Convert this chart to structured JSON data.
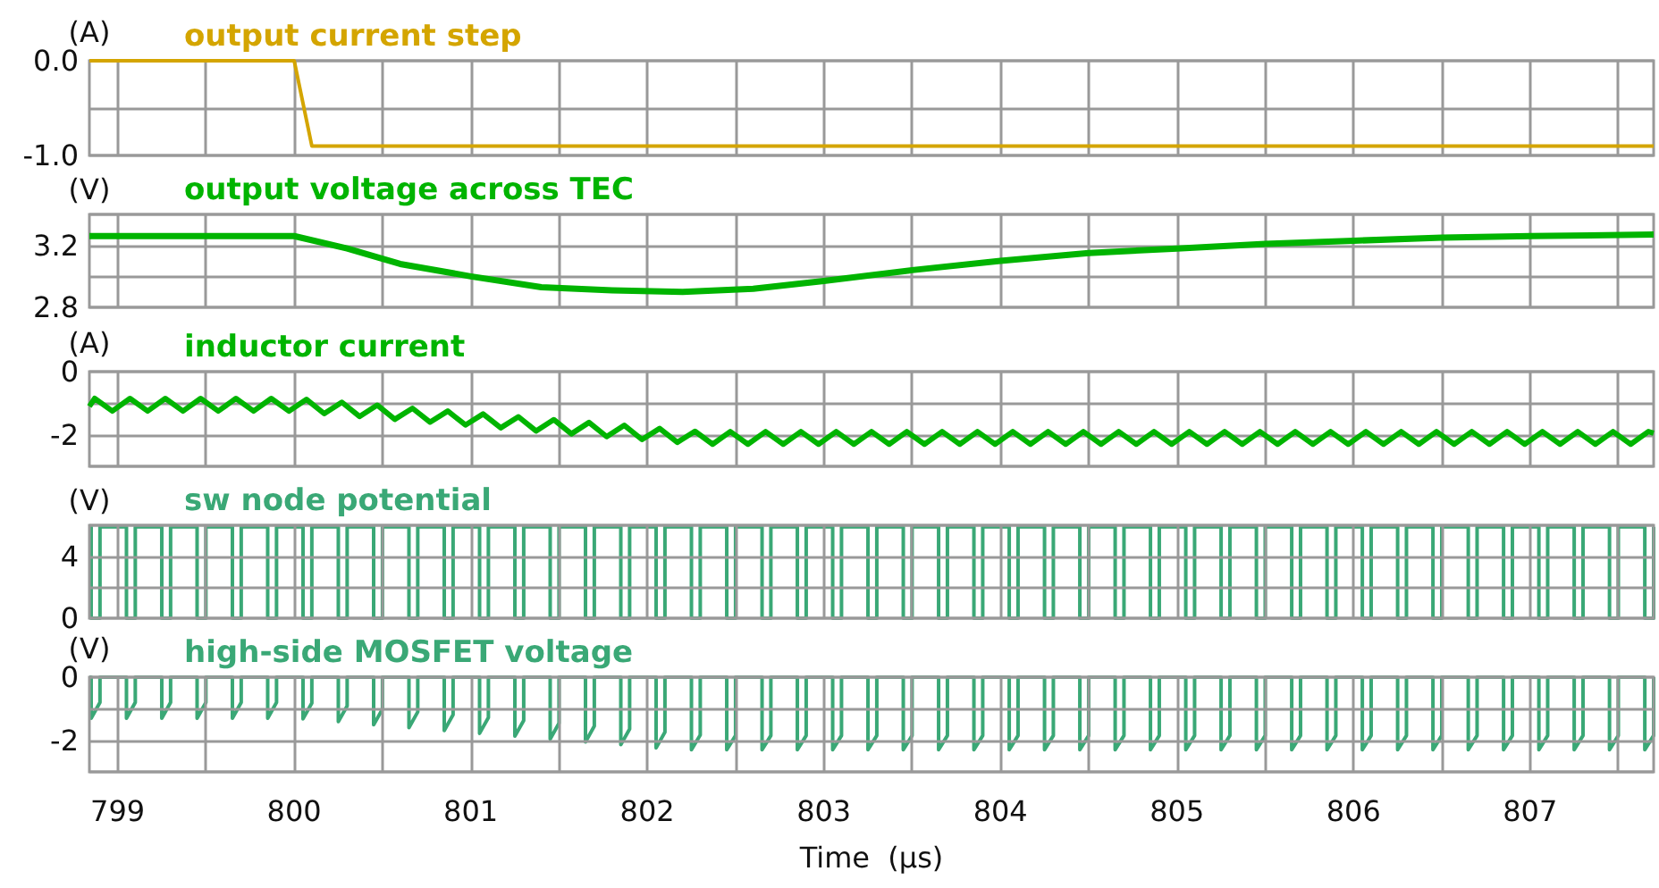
{
  "chart_data": [
    {
      "type": "line",
      "title": "output current step",
      "ylabel": "(A)",
      "tick_labels": "y",
      "grid": true,
      "xlim": [
        798.84,
        807.7
      ],
      "xticks": [
        799,
        {
          "value": 799.5,
          "label": null
        },
        800,
        {
          "value": 800.5,
          "label": null
        },
        801,
        {
          "value": 801.5,
          "label": null
        },
        802,
        {
          "value": 802.5,
          "label": null
        },
        803,
        {
          "value": 803.5,
          "label": null
        },
        804,
        {
          "value": 804.5,
          "label": null
        },
        805,
        {
          "value": 805.5,
          "label": null
        },
        806,
        {
          "value": 806.5,
          "label": null
        },
        807,
        {
          "value": 807.5,
          "label": null
        }
      ],
      "ylim": [
        -1,
        0
      ],
      "yticks": [
        {
          "value": -1,
          "label": "-1.0"
        },
        {
          "value": -0.5,
          "label": null
        },
        {
          "value": 0,
          "label": "0.0"
        }
      ],
      "series": [
        {
          "color": "#d4a500",
          "x": [
            798.84,
            800.0,
            800.1,
            807.7
          ],
          "values": [
            0,
            0,
            -0.9,
            -0.9
          ]
        }
      ]
    },
    {
      "type": "line",
      "title": "output voltage across TEC",
      "ylabel": "(V)",
      "tick_labels": "y",
      "grid": true,
      "xlim": [
        798.84,
        807.7
      ],
      "xticks": [
        799,
        {
          "value": 799.5,
          "label": null
        },
        800,
        {
          "value": 800.5,
          "label": null
        },
        801,
        {
          "value": 801.5,
          "label": null
        },
        802,
        {
          "value": 802.5,
          "label": null
        },
        803,
        {
          "value": 803.5,
          "label": null
        },
        804,
        {
          "value": 804.5,
          "label": null
        },
        805,
        {
          "value": 805.5,
          "label": null
        },
        806,
        {
          "value": 806.5,
          "label": null
        },
        807,
        {
          "value": 807.5,
          "label": null
        }
      ],
      "ylim": [
        2.8,
        3.4
      ],
      "yticks": [
        2.8,
        {
          "value": 3.0,
          "label": null
        },
        3.2,
        {
          "value": 3.4,
          "label": null
        }
      ],
      "series": [
        {
          "color": "#00b400",
          "x": [
            798.84,
            800.0,
            800.3,
            800.6,
            801.0,
            801.4,
            801.8,
            802.2,
            802.6,
            803.0,
            803.5,
            804.0,
            804.5,
            805.0,
            805.5,
            806.0,
            806.5,
            807.0,
            807.7
          ],
          "values": [
            3.26,
            3.26,
            3.18,
            3.08,
            3.0,
            2.93,
            2.91,
            2.9,
            2.92,
            2.97,
            3.04,
            3.1,
            3.15,
            3.18,
            3.21,
            3.23,
            3.25,
            3.26,
            3.27
          ]
        }
      ]
    },
    {
      "type": "line",
      "title": "inductor current",
      "ylabel": "(A)",
      "tick_labels": "y",
      "grid": true,
      "xlim": [
        798.84,
        807.7
      ],
      "xticks": [
        799,
        {
          "value": 799.5,
          "label": null
        },
        800,
        {
          "value": 800.5,
          "label": null
        },
        801,
        {
          "value": 801.5,
          "label": null
        },
        802,
        {
          "value": 802.5,
          "label": null
        },
        803,
        {
          "value": 803.5,
          "label": null
        },
        804,
        {
          "value": 804.5,
          "label": null
        },
        805,
        {
          "value": 805.5,
          "label": null
        },
        806,
        {
          "value": 806.5,
          "label": null
        },
        807,
        {
          "value": 807.5,
          "label": null
        }
      ],
      "ylim": [
        -3,
        0
      ],
      "yticks": [
        {
          "value": -3,
          "label": null
        },
        -2,
        {
          "value": -1,
          "label": null
        },
        0
      ],
      "series": [
        {
          "color": "#00b400",
          "x": [
            798.84,
            798.87,
            798.97,
            799.07,
            799.17,
            799.27,
            799.37,
            799.47,
            799.57,
            799.67,
            799.77,
            799.87,
            799.97,
            800.07,
            800.17,
            800.27,
            800.37,
            800.47,
            800.57,
            800.67,
            800.77,
            800.87,
            800.97,
            801.07,
            801.17,
            801.27,
            801.37,
            801.47,
            801.57,
            801.67,
            801.77,
            801.87,
            801.97,
            802.07,
            802.17,
            802.27,
            802.37,
            802.47,
            802.57,
            802.67,
            802.77,
            802.87,
            802.97,
            803.07,
            803.17,
            803.27,
            803.37,
            803.47,
            803.57,
            803.67,
            803.77,
            803.87,
            803.97,
            804.07,
            804.17,
            804.27,
            804.37,
            804.47,
            804.57,
            804.67,
            804.77,
            804.87,
            804.97,
            805.07,
            805.17,
            805.27,
            805.37,
            805.47,
            805.57,
            805.67,
            805.77,
            805.87,
            805.97,
            806.07,
            806.17,
            806.27,
            806.37,
            806.47,
            806.57,
            806.67,
            806.77,
            806.87,
            806.97,
            807.07,
            807.17,
            807.27,
            807.37,
            807.47,
            807.57,
            807.67,
            807.7
          ],
          "values": [
            -1.1,
            -0.85,
            -1.25,
            -0.85,
            -1.25,
            -0.85,
            -1.25,
            -0.85,
            -1.25,
            -0.85,
            -1.25,
            -0.85,
            -1.25,
            -0.88,
            -1.33,
            -0.97,
            -1.42,
            -1.06,
            -1.51,
            -1.16,
            -1.6,
            -1.25,
            -1.69,
            -1.34,
            -1.78,
            -1.43,
            -1.88,
            -1.52,
            -1.97,
            -1.61,
            -2.06,
            -1.7,
            -2.15,
            -1.8,
            -2.24,
            -1.89,
            -2.3,
            -1.9,
            -2.3,
            -1.9,
            -2.3,
            -1.9,
            -2.3,
            -1.9,
            -2.3,
            -1.9,
            -2.3,
            -1.9,
            -2.3,
            -1.9,
            -2.3,
            -1.9,
            -2.3,
            -1.9,
            -2.3,
            -1.9,
            -2.3,
            -1.9,
            -2.3,
            -1.9,
            -2.3,
            -1.9,
            -2.3,
            -1.9,
            -2.3,
            -1.9,
            -2.3,
            -1.9,
            -2.3,
            -1.9,
            -2.3,
            -1.9,
            -2.3,
            -1.9,
            -2.3,
            -1.9,
            -2.3,
            -1.9,
            -2.3,
            -1.9,
            -2.3,
            -1.9,
            -2.3,
            -1.9,
            -2.3,
            -1.9,
            -2.3,
            -1.9,
            -2.3,
            -1.9,
            -1.95
          ]
        }
      ]
    },
    {
      "type": "line",
      "title": "sw node potential",
      "ylabel": "(V)",
      "tick_labels": "y",
      "grid": true,
      "xlim": [
        798.84,
        807.7
      ],
      "xticks": [
        799,
        {
          "value": 799.5,
          "label": null
        },
        800,
        {
          "value": 800.5,
          "label": null
        },
        801,
        {
          "value": 801.5,
          "label": null
        },
        802,
        {
          "value": 802.5,
          "label": null
        },
        803,
        {
          "value": 803.5,
          "label": null
        },
        804,
        {
          "value": 804.5,
          "label": null
        },
        805,
        {
          "value": 805.5,
          "label": null
        },
        806,
        {
          "value": 806.5,
          "label": null
        },
        807,
        {
          "value": 807.5,
          "label": null
        }
      ],
      "ylim": [
        0,
        6
      ],
      "yticks": [
        0,
        {
          "value": 2,
          "label": null
        },
        4,
        {
          "value": 6,
          "label": null
        }
      ],
      "x": [
        798.84,
        798.85,
        798.85,
        798.9,
        798.9,
        799.05,
        799.05,
        799.1,
        799.1,
        799.25,
        799.25,
        799.3,
        799.3,
        799.45,
        799.45,
        799.5,
        799.5,
        799.65,
        799.65,
        799.7,
        799.7,
        799.85,
        799.85,
        799.9,
        799.9,
        800.05,
        800.05,
        800.1,
        800.1,
        800.25,
        800.25,
        800.3,
        800.3,
        800.45,
        800.45,
        800.5,
        800.5,
        800.65,
        800.65,
        800.7,
        800.7,
        800.85,
        800.85,
        800.9,
        800.9,
        801.05,
        801.05,
        801.1,
        801.1,
        801.25,
        801.25,
        801.3,
        801.3,
        801.45,
        801.45,
        801.5,
        801.5,
        801.65,
        801.65,
        801.7,
        801.7,
        801.85,
        801.85,
        801.9,
        801.9,
        802.05,
        802.05,
        802.1,
        802.1,
        802.25,
        802.25,
        802.3,
        802.3,
        802.45,
        802.45,
        802.5,
        802.5,
        802.65,
        802.65,
        802.7,
        802.7,
        802.85,
        802.85,
        802.9,
        802.9,
        803.05,
        803.05,
        803.1,
        803.1,
        803.25,
        803.25,
        803.3,
        803.3,
        803.45,
        803.45,
        803.5,
        803.5,
        803.65,
        803.65,
        803.7,
        803.7,
        803.85,
        803.85,
        803.9,
        803.9,
        804.05,
        804.05,
        804.1,
        804.1,
        804.25,
        804.25,
        804.3,
        804.3,
        804.45,
        804.45,
        804.5,
        804.5,
        804.65,
        804.65,
        804.7,
        804.7,
        804.85,
        804.85,
        804.9,
        804.9,
        805.05,
        805.05,
        805.1,
        805.1,
        805.25,
        805.25,
        805.3,
        805.3,
        805.45,
        805.45,
        805.5,
        805.5,
        805.65,
        805.65,
        805.7,
        805.7,
        805.85,
        805.85,
        805.9,
        805.9,
        806.05,
        806.05,
        806.1,
        806.1,
        806.25,
        806.25,
        806.3,
        806.3,
        806.45,
        806.45,
        806.5,
        806.5,
        806.65,
        806.65,
        806.7,
        806.7,
        806.85,
        806.85,
        806.9,
        806.9,
        807.05,
        807.05,
        807.1,
        807.1,
        807.25,
        807.25,
        807.3,
        807.3,
        807.45,
        807.45,
        807.5,
        807.5,
        807.65,
        807.65,
        807.7,
        807.7
      ],
      "series": [
        {
          "color": "#3aa876",
          "values": [
            5.9,
            5.9,
            0,
            0,
            5.9,
            5.9,
            0,
            0,
            5.9,
            5.9,
            0,
            0,
            5.9,
            5.9,
            0,
            0,
            5.9,
            5.9,
            0,
            0,
            5.9,
            5.9,
            0,
            0,
            5.9,
            5.9,
            0,
            0,
            5.9,
            5.9,
            0,
            0,
            5.9,
            5.9,
            0,
            0,
            5.9,
            5.9,
            0,
            0,
            5.9,
            5.9,
            0,
            0,
            5.9,
            5.9,
            0,
            0,
            5.9,
            5.9,
            0,
            0,
            5.9,
            5.9,
            0,
            0,
            5.9,
            5.9,
            0,
            0,
            5.9,
            5.9,
            0,
            0,
            5.9,
            5.9,
            0,
            0,
            5.9,
            5.9,
            0,
            0,
            5.9,
            5.9,
            0,
            0,
            5.9,
            5.9,
            0,
            0,
            5.9,
            5.9,
            0,
            0,
            5.9,
            5.9,
            0,
            0,
            5.9,
            5.9,
            0,
            0,
            5.9,
            5.9,
            0,
            0,
            5.9,
            5.9,
            0,
            0,
            5.9,
            5.9,
            0,
            0,
            5.9,
            5.9,
            0,
            0,
            5.9,
            5.9,
            0,
            0,
            5.9,
            5.9,
            0,
            0,
            5.9,
            5.9,
            0,
            0,
            5.9,
            5.9,
            0,
            0,
            5.9,
            5.9,
            0,
            0,
            5.9,
            5.9,
            0,
            0,
            5.9,
            5.9,
            0,
            0,
            5.9,
            5.9,
            0,
            0,
            5.9,
            5.9,
            0,
            0,
            5.9,
            5.9,
            0,
            0,
            5.9,
            5.9,
            0,
            0,
            5.9,
            5.9,
            0,
            0,
            5.9,
            5.9,
            0,
            0,
            5.9,
            5.9,
            0,
            0,
            5.9,
            5.9,
            0,
            0,
            5.9,
            5.9,
            0,
            0,
            5.9,
            5.9,
            0,
            0,
            5.9,
            5.9,
            0,
            0,
            5.9
          ]
        }
      ]
    },
    {
      "type": "line",
      "title": "high-side MOSFET voltage",
      "ylabel": "(V)",
      "xlabel": "Time  (µs)",
      "grid": true,
      "xlim": [
        798.84,
        807.7
      ],
      "xticks": [
        799,
        {
          "value": 799.5,
          "label": null
        },
        800,
        {
          "value": 800.5,
          "label": null
        },
        801,
        {
          "value": 801.5,
          "label": null
        },
        802,
        {
          "value": 802.5,
          "label": null
        },
        803,
        {
          "value": 803.5,
          "label": null
        },
        804,
        {
          "value": 804.5,
          "label": null
        },
        805,
        {
          "value": 805.5,
          "label": null
        },
        806,
        {
          "value": 806.5,
          "label": null
        },
        807,
        {
          "value": 807.5,
          "label": null
        }
      ],
      "ylim": [
        -3,
        0
      ],
      "yticks": [
        {
          "value": -3,
          "label": null
        },
        -2,
        {
          "value": -1,
          "label": null
        },
        0
      ],
      "x": [
        798.84,
        798.85,
        798.85,
        798.9,
        798.9,
        799.05,
        799.05,
        799.1,
        799.1,
        799.25,
        799.25,
        799.3,
        799.3,
        799.45,
        799.45,
        799.5,
        799.5,
        799.65,
        799.65,
        799.7,
        799.7,
        799.85,
        799.85,
        799.9,
        799.9,
        800.05,
        800.05,
        800.1,
        800.1,
        800.25,
        800.25,
        800.3,
        800.3,
        800.45,
        800.45,
        800.5,
        800.5,
        800.65,
        800.65,
        800.7,
        800.7,
        800.85,
        800.85,
        800.9,
        800.9,
        801.05,
        801.05,
        801.1,
        801.1,
        801.25,
        801.25,
        801.3,
        801.3,
        801.45,
        801.45,
        801.5,
        801.5,
        801.65,
        801.65,
        801.7,
        801.7,
        801.85,
        801.85,
        801.9,
        801.9,
        802.05,
        802.05,
        802.1,
        802.1,
        802.25,
        802.25,
        802.3,
        802.3,
        802.45,
        802.45,
        802.5,
        802.5,
        802.65,
        802.65,
        802.7,
        802.7,
        802.85,
        802.85,
        802.9,
        802.9,
        803.05,
        803.05,
        803.1,
        803.1,
        803.25,
        803.25,
        803.3,
        803.3,
        803.45,
        803.45,
        803.5,
        803.5,
        803.65,
        803.65,
        803.7,
        803.7,
        803.85,
        803.85,
        803.9,
        803.9,
        804.05,
        804.05,
        804.1,
        804.1,
        804.25,
        804.25,
        804.3,
        804.3,
        804.45,
        804.45,
        804.5,
        804.5,
        804.65,
        804.65,
        804.7,
        804.7,
        804.85,
        804.85,
        804.9,
        804.9,
        805.05,
        805.05,
        805.1,
        805.1,
        805.25,
        805.25,
        805.3,
        805.3,
        805.45,
        805.45,
        805.5,
        805.5,
        805.65,
        805.65,
        805.7,
        805.7,
        805.85,
        805.85,
        805.9,
        805.9,
        806.05,
        806.05,
        806.1,
        806.1,
        806.25,
        806.25,
        806.3,
        806.3,
        806.45,
        806.45,
        806.5,
        806.5,
        806.65,
        806.65,
        806.7,
        806.7,
        806.85,
        806.85,
        806.9,
        806.9,
        807.05,
        807.05,
        807.1,
        807.1,
        807.25,
        807.25,
        807.3,
        807.3,
        807.45,
        807.45,
        807.5,
        807.5,
        807.65,
        807.65,
        807.7,
        807.7
      ],
      "series": [
        {
          "color": "#3aa876",
          "values": [
            0,
            0,
            -1.3,
            -0.8,
            0,
            0,
            -1.3,
            -0.8,
            0,
            0,
            -1.3,
            -0.8,
            0,
            0,
            -1.3,
            -0.8,
            0,
            0,
            -1.3,
            -0.8,
            0,
            0,
            -1.3,
            -0.8,
            0,
            0,
            -1.32,
            -0.82,
            0,
            0,
            -1.41,
            -0.91,
            0,
            0,
            -1.51,
            -1.01,
            0,
            0,
            -1.6,
            -1.1,
            0,
            0,
            -1.69,
            -1.19,
            0,
            0,
            -1.78,
            -1.28,
            0,
            0,
            -1.87,
            -1.37,
            0,
            0,
            -1.96,
            -1.46,
            0,
            0,
            -2.05,
            -1.55,
            0,
            0,
            -2.14,
            -1.64,
            0,
            0,
            -2.24,
            -1.74,
            0,
            0,
            -2.3,
            -1.83,
            0,
            0,
            -2.3,
            -1.85,
            0,
            0,
            -2.3,
            -1.85,
            0,
            0,
            -2.3,
            -1.85,
            0,
            0,
            -2.3,
            -1.85,
            0,
            0,
            -2.3,
            -1.85,
            0,
            0,
            -2.3,
            -1.85,
            0,
            0,
            -2.3,
            -1.85,
            0,
            0,
            -2.3,
            -1.85,
            0,
            0,
            -2.3,
            -1.85,
            0,
            0,
            -2.3,
            -1.85,
            0,
            0,
            -2.3,
            -1.85,
            0,
            0,
            -2.3,
            -1.85,
            0,
            0,
            -2.3,
            -1.85,
            0,
            0,
            -2.3,
            -1.85,
            0,
            0,
            -2.3,
            -1.85,
            0,
            0,
            -2.3,
            -1.85,
            0,
            0,
            -2.3,
            -1.85,
            0,
            0,
            -2.3,
            -1.85,
            0,
            0,
            -2.3,
            -1.85,
            0,
            0,
            -2.3,
            -1.85,
            0,
            0,
            -2.3,
            -1.85,
            0,
            0,
            -2.3,
            -1.85,
            0,
            0,
            -2.3,
            -1.85,
            0,
            0,
            -2.3,
            -1.85,
            0,
            0,
            -2.3,
            -1.85,
            0,
            0,
            -2.3,
            -1.85,
            0,
            0,
            -2.3,
            -1.85,
            0
          ]
        }
      ]
    }
  ]
}
